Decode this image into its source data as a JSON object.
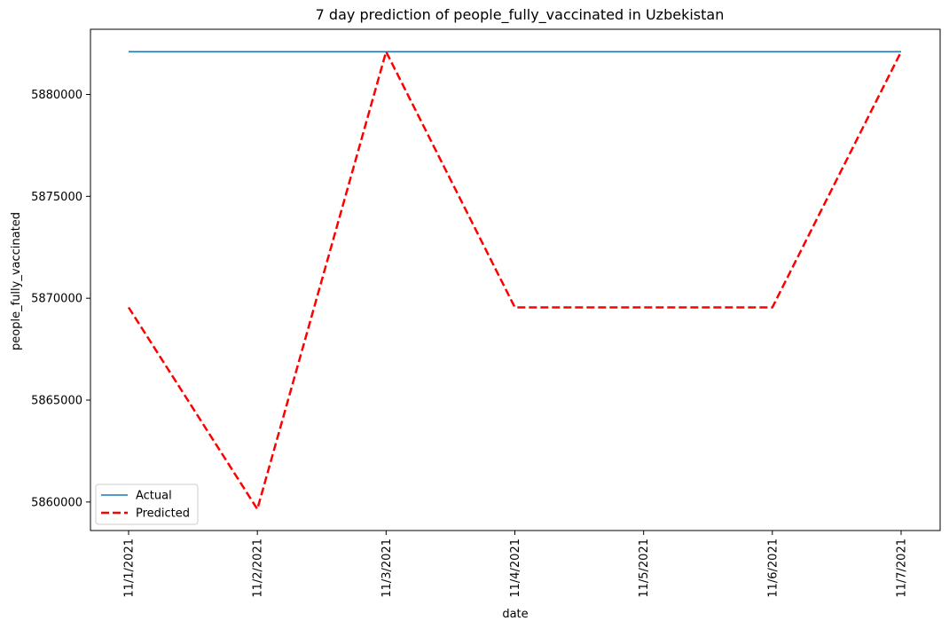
{
  "chart_data": {
    "type": "line",
    "title": "7 day prediction of people_fully_vaccinated in Uzbekistan",
    "xlabel": "date",
    "ylabel": "people_fully_vaccinated",
    "categories": [
      "11/1/2021",
      "11/2/2021",
      "11/3/2021",
      "11/4/2021",
      "11/5/2021",
      "11/6/2021",
      "11/7/2021"
    ],
    "yticks": [
      5860000,
      5865000,
      5870000,
      5875000,
      5880000
    ],
    "ylim": [
      5858600,
      5883200
    ],
    "grid": false,
    "legend_position": "bottom-left",
    "series": [
      {
        "name": "Actual",
        "color": "#1f77b4",
        "style": "solid",
        "values": [
          5882100,
          5882100,
          5882100,
          5882100,
          5882100,
          5882100,
          5882100
        ]
      },
      {
        "name": "Predicted",
        "color": "#ff0000",
        "style": "dashed",
        "values": [
          5869550,
          5859650,
          5882100,
          5869550,
          5869550,
          5869550,
          5882100
        ]
      }
    ]
  }
}
